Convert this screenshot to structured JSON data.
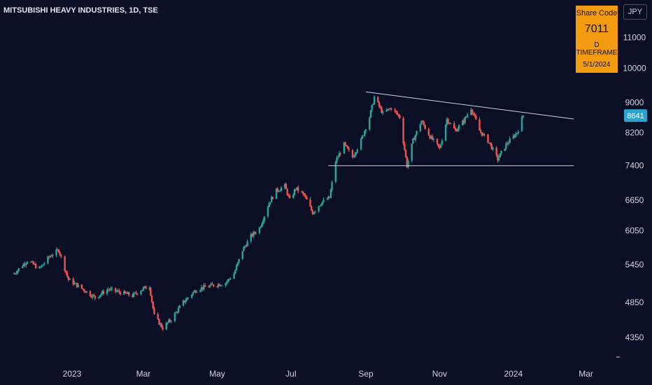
{
  "header": {
    "title": "MITSUBISHI HEAVY INDUSTRIES, 1D, TSE"
  },
  "badge": {
    "label": "Share Code",
    "code": "7011",
    "timeframe": "D TIMEFRAME",
    "date": "5/1/2024"
  },
  "currency_button": "JPY",
  "colors": {
    "background": "#0a0f26",
    "up": "#26a69a",
    "down": "#ef5350",
    "badge": "#f39c12",
    "price_tag": "#2aa4cf",
    "trendline": "#d1d4dc"
  },
  "chart_data": {
    "type": "candlestick",
    "x_tick_labels": [
      "2023",
      "Mar",
      "May",
      "Jul",
      "Sep",
      "Nov",
      "2024",
      "Mar"
    ],
    "y_tick_labels": [
      4350,
      4850,
      5450,
      6050,
      6650,
      7400,
      8200,
      9000,
      10000,
      11000
    ],
    "y_scale": "log",
    "last_price": 8641,
    "support_line": {
      "value": 7400,
      "from": "Aug 2023",
      "to": "Feb 2024"
    },
    "resistance_line": {
      "from_value": 9300,
      "to_value": 8550,
      "from": "Sep 2023",
      "to": "Feb 2024"
    },
    "anchors": [
      [
        "2022-11-14",
        5300
      ],
      [
        "2022-11-25",
        5520
      ],
      [
        "2022-12-05",
        5380
      ],
      [
        "2022-12-14",
        5600
      ],
      [
        "2022-12-21",
        5700
      ],
      [
        "2022-12-29",
        5200
      ],
      [
        "2023-01-10",
        5050
      ],
      [
        "2023-01-20",
        4920
      ],
      [
        "2023-01-31",
        5050
      ],
      [
        "2023-02-10",
        5000
      ],
      [
        "2023-02-20",
        4950
      ],
      [
        "2023-02-28",
        5050
      ],
      [
        "2023-03-06",
        5100
      ],
      [
        "2023-03-10",
        4650
      ],
      [
        "2023-03-17",
        4480
      ],
      [
        "2023-03-24",
        4600
      ],
      [
        "2023-04-03",
        4850
      ],
      [
        "2023-04-14",
        5050
      ],
      [
        "2023-04-25",
        5100
      ],
      [
        "2023-05-08",
        5150
      ],
      [
        "2023-05-15",
        5300
      ],
      [
        "2023-05-22",
        5700
      ],
      [
        "2023-05-29",
        5950
      ],
      [
        "2023-06-05",
        6100
      ],
      [
        "2023-06-13",
        6600
      ],
      [
        "2023-06-19",
        6850
      ],
      [
        "2023-06-26",
        6950
      ],
      [
        "2023-06-30",
        6650
      ],
      [
        "2023-07-05",
        6900
      ],
      [
        "2023-07-12",
        6750
      ],
      [
        "2023-07-19",
        6400
      ],
      [
        "2023-07-26",
        6600
      ],
      [
        "2023-08-02",
        6700
      ],
      [
        "2023-08-07",
        7500
      ],
      [
        "2023-08-14",
        7900
      ],
      [
        "2023-08-21",
        7600
      ],
      [
        "2023-08-28",
        8000
      ],
      [
        "2023-09-04",
        8600
      ],
      [
        "2023-09-08",
        9150
      ],
      [
        "2023-09-15",
        8700
      ],
      [
        "2023-09-22",
        8850
      ],
      [
        "2023-09-29",
        8600
      ],
      [
        "2023-10-05",
        7400
      ],
      [
        "2023-10-10",
        8000
      ],
      [
        "2023-10-17",
        8500
      ],
      [
        "2023-10-24",
        8100
      ],
      [
        "2023-11-01",
        7800
      ],
      [
        "2023-11-07",
        8550
      ],
      [
        "2023-11-14",
        8250
      ],
      [
        "2023-11-21",
        8500
      ],
      [
        "2023-11-27",
        8850
      ],
      [
        "2023-12-04",
        8250
      ],
      [
        "2023-12-12",
        7950
      ],
      [
        "2023-12-19",
        7550
      ],
      [
        "2023-12-26",
        7900
      ],
      [
        "2024-01-04",
        8200
      ],
      [
        "2024-01-09",
        8641
      ]
    ]
  }
}
